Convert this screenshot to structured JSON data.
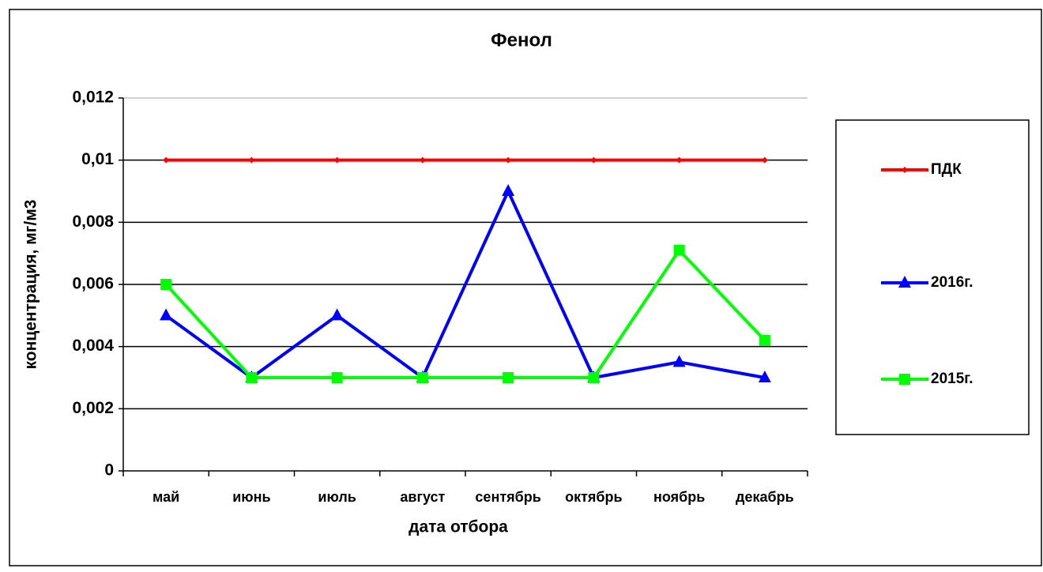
{
  "chart_data": {
    "type": "line",
    "title": "Фенол",
    "xlabel": "дата отбора",
    "ylabel": "концентрация, мг/м3",
    "categories": [
      "май",
      "июнь",
      "июль",
      "август",
      "сентябрь",
      "октябрь",
      "ноябрь",
      "декабрь"
    ],
    "series": [
      {
        "name": "ПДК",
        "color": "#ff0000",
        "marker": "diamond",
        "values": [
          0.01,
          0.01,
          0.01,
          0.01,
          0.01,
          0.01,
          0.01,
          0.01
        ]
      },
      {
        "name": "2016г.",
        "color": "#0000ff",
        "marker": "triangle",
        "values": [
          0.005,
          0.003,
          0.005,
          0.003,
          0.009,
          0.003,
          0.0035,
          0.003
        ]
      },
      {
        "name": "2015г.",
        "color": "#00ff00",
        "marker": "square",
        "values": [
          0.006,
          0.003,
          0.003,
          0.003,
          0.003,
          0.003,
          0.0071,
          0.0042
        ]
      }
    ],
    "ylim": [
      0,
      0.012
    ],
    "yticks": [
      0,
      {
        "value": 0.002,
        "label": "0,002"
      },
      {
        "value": 0.004,
        "label": "0,004"
      },
      {
        "value": 0.006,
        "label": "0,006"
      },
      {
        "value": 0.008,
        "label": "0,008"
      },
      {
        "value": 0.01,
        "label": "0,01"
      },
      {
        "value": 0.012,
        "label": "0,012"
      }
    ],
    "grid": true,
    "legend": "right"
  }
}
